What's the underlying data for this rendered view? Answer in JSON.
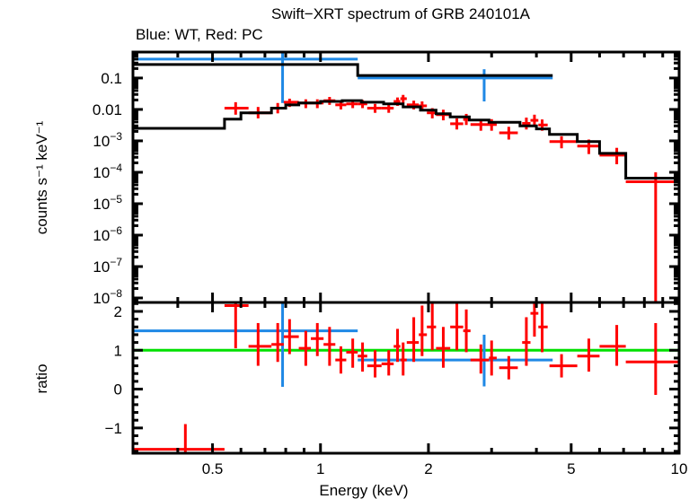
{
  "chart_data": [
    {
      "type": "scatter",
      "panel": "spectrum",
      "title": "Swift−XRT spectrum of GRB 240101A",
      "subtitle": "Blue: WT, Red: PC",
      "xlabel": "Energy (keV)",
      "ylabel": "counts s⁻¹ keV⁻¹",
      "xscale": "log",
      "yscale": "log",
      "xlim": [
        0.3,
        10
      ],
      "ylim": [
        7.2e-09,
        0.67
      ],
      "xticks": [
        {
          "value": 0.5,
          "label": "0.5"
        },
        {
          "value": 1,
          "label": "1"
        },
        {
          "value": 2,
          "label": "2"
        },
        {
          "value": 5,
          "label": "5"
        },
        {
          "value": 10,
          "label": "10"
        }
      ],
      "yticks": [
        {
          "value": 0.1,
          "label": "0.1",
          "base": "0.1",
          "exp": ""
        },
        {
          "value": 0.01,
          "label": "0.01",
          "base": "0.01",
          "exp": ""
        },
        {
          "value": 0.001,
          "label": "10^-3",
          "base": "10",
          "exp": "−3"
        },
        {
          "value": 0.0001,
          "label": "10^-4",
          "base": "10",
          "exp": "−4"
        },
        {
          "value": 1e-05,
          "label": "10^-5",
          "base": "10",
          "exp": "−5"
        },
        {
          "value": 1e-06,
          "label": "10^-6",
          "base": "10",
          "exp": "−6"
        },
        {
          "value": 1e-07,
          "label": "10^-7",
          "base": "10",
          "exp": "−7"
        },
        {
          "value": 1e-08,
          "label": "10^-8",
          "base": "10",
          "exp": "−8"
        }
      ],
      "series": [
        {
          "name": "WT",
          "color": "#1e88e5",
          "kind": "errorbars",
          "points": [
            {
              "x": 0.784,
              "xlo": 0.3,
              "xhi": 1.27,
              "y": 0.4,
              "ylo": 0.016,
              "yhi": 0.67
            },
            {
              "x": 2.86,
              "xlo": 1.27,
              "xhi": 4.44,
              "y": 0.1,
              "ylo": 0.018,
              "yhi": 0.19
            }
          ]
        },
        {
          "name": "WT model",
          "color": "#000000",
          "kind": "step",
          "steps": [
            {
              "xlo": 0.3,
              "xhi": 1.27,
              "y": 0.27
            },
            {
              "xlo": 1.27,
              "xhi": 4.44,
              "y": 0.12
            }
          ]
        },
        {
          "name": "PC",
          "color": "#ff0000",
          "kind": "errorbars",
          "points": [
            {
              "x": 0.58,
              "xlo": 0.54,
              "xhi": 0.63,
              "y": 0.011,
              "ylo": 0.0068,
              "yhi": 0.017
            },
            {
              "x": 0.67,
              "xlo": 0.63,
              "xhi": 0.73,
              "y": 0.0078,
              "ylo": 0.0052,
              "yhi": 0.012
            },
            {
              "x": 0.76,
              "xlo": 0.73,
              "xhi": 0.79,
              "y": 0.011,
              "ylo": 0.0075,
              "yhi": 0.016
            },
            {
              "x": 0.82,
              "xlo": 0.79,
              "xhi": 0.87,
              "y": 0.017,
              "ylo": 0.012,
              "yhi": 0.022
            },
            {
              "x": 0.91,
              "xlo": 0.87,
              "xhi": 0.94,
              "y": 0.016,
              "ylo": 0.011,
              "yhi": 0.021
            },
            {
              "x": 0.98,
              "xlo": 0.94,
              "xhi": 1.02,
              "y": 0.016,
              "ylo": 0.011,
              "yhi": 0.021
            },
            {
              "x": 1.06,
              "xlo": 1.02,
              "xhi": 1.1,
              "y": 0.019,
              "ylo": 0.014,
              "yhi": 0.025
            },
            {
              "x": 1.14,
              "xlo": 1.1,
              "xhi": 1.18,
              "y": 0.014,
              "ylo": 0.01,
              "yhi": 0.019
            },
            {
              "x": 1.23,
              "xlo": 1.18,
              "xhi": 1.27,
              "y": 0.015,
              "ylo": 0.011,
              "yhi": 0.02
            },
            {
              "x": 1.31,
              "xlo": 1.27,
              "xhi": 1.35,
              "y": 0.015,
              "ylo": 0.011,
              "yhi": 0.02
            },
            {
              "x": 1.42,
              "xlo": 1.35,
              "xhi": 1.48,
              "y": 0.011,
              "ylo": 0.0078,
              "yhi": 0.015
            },
            {
              "x": 1.55,
              "xlo": 1.48,
              "xhi": 1.6,
              "y": 0.011,
              "ylo": 0.0078,
              "yhi": 0.015
            },
            {
              "x": 1.64,
              "xlo": 1.6,
              "xhi": 1.67,
              "y": 0.018,
              "ylo": 0.013,
              "yhi": 0.024
            },
            {
              "x": 1.7,
              "xlo": 1.67,
              "xhi": 1.74,
              "y": 0.022,
              "ylo": 0.016,
              "yhi": 0.029
            },
            {
              "x": 1.82,
              "xlo": 1.74,
              "xhi": 1.88,
              "y": 0.014,
              "ylo": 0.01,
              "yhi": 0.019
            },
            {
              "x": 1.92,
              "xlo": 1.88,
              "xhi": 1.98,
              "y": 0.013,
              "ylo": 0.0093,
              "yhi": 0.018
            },
            {
              "x": 2.05,
              "xlo": 1.98,
              "xhi": 2.1,
              "y": 0.0078,
              "ylo": 0.0052,
              "yhi": 0.011
            },
            {
              "x": 2.2,
              "xlo": 2.1,
              "xhi": 2.3,
              "y": 0.0068,
              "ylo": 0.0045,
              "yhi": 0.0098
            },
            {
              "x": 2.4,
              "xlo": 2.3,
              "xhi": 2.5,
              "y": 0.0035,
              "ylo": 0.0023,
              "yhi": 0.0052
            },
            {
              "x": 2.55,
              "xlo": 2.5,
              "xhi": 2.62,
              "y": 0.0048,
              "ylo": 0.0032,
              "yhi": 0.0072
            },
            {
              "x": 2.8,
              "xlo": 2.62,
              "xhi": 2.95,
              "y": 0.0033,
              "ylo": 0.0021,
              "yhi": 0.0048
            },
            {
              "x": 3.0,
              "xlo": 2.95,
              "xhi": 3.1,
              "y": 0.0033,
              "ylo": 0.0021,
              "yhi": 0.0049
            },
            {
              "x": 3.35,
              "xlo": 3.15,
              "xhi": 3.55,
              "y": 0.0018,
              "ylo": 0.0011,
              "yhi": 0.0028
            },
            {
              "x": 3.75,
              "xlo": 3.65,
              "xhi": 3.85,
              "y": 0.0036,
              "ylo": 0.0023,
              "yhi": 0.0055
            },
            {
              "x": 3.95,
              "xlo": 3.85,
              "xhi": 4.05,
              "y": 0.0045,
              "ylo": 0.0029,
              "yhi": 0.0068
            },
            {
              "x": 4.15,
              "xlo": 4.05,
              "xhi": 4.3,
              "y": 0.0032,
              "ylo": 0.0021,
              "yhi": 0.0048
            },
            {
              "x": 4.7,
              "xlo": 4.35,
              "xhi": 5.2,
              "y": 0.00095,
              "ylo": 0.00058,
              "yhi": 0.0014
            },
            {
              "x": 5.6,
              "xlo": 5.2,
              "xhi": 6.0,
              "y": 0.00068,
              "ylo": 0.00038,
              "yhi": 0.0011
            },
            {
              "x": 6.7,
              "xlo": 6.0,
              "xhi": 7.1,
              "y": 0.00035,
              "ylo": 0.00018,
              "yhi": 0.0006
            },
            {
              "x": 8.6,
              "xlo": 7.1,
              "xhi": 10.0,
              "y": 5e-05,
              "ylo": 7.2e-09,
              "yhi": 0.0001
            }
          ]
        },
        {
          "name": "PC model",
          "color": "#000000",
          "kind": "step",
          "steps": [
            {
              "xlo": 0.3,
              "xhi": 0.54,
              "y": 0.0025
            },
            {
              "xlo": 0.54,
              "xhi": 0.6,
              "y": 0.0049
            },
            {
              "xlo": 0.6,
              "xhi": 0.73,
              "y": 0.0078
            },
            {
              "xlo": 0.73,
              "xhi": 0.8,
              "y": 0.011
            },
            {
              "xlo": 0.8,
              "xhi": 0.87,
              "y": 0.014
            },
            {
              "xlo": 0.87,
              "xhi": 1.0,
              "y": 0.016
            },
            {
              "xlo": 1.0,
              "xhi": 1.15,
              "y": 0.018
            },
            {
              "xlo": 1.15,
              "xhi": 1.3,
              "y": 0.019
            },
            {
              "xlo": 1.3,
              "xhi": 1.5,
              "y": 0.017
            },
            {
              "xlo": 1.5,
              "xhi": 1.7,
              "y": 0.015
            },
            {
              "xlo": 1.7,
              "xhi": 1.9,
              "y": 0.012
            },
            {
              "xlo": 1.9,
              "xhi": 2.1,
              "y": 0.0095
            },
            {
              "xlo": 2.1,
              "xhi": 2.3,
              "y": 0.0073
            },
            {
              "xlo": 2.3,
              "xhi": 2.6,
              "y": 0.0058
            },
            {
              "xlo": 2.6,
              "xhi": 2.95,
              "y": 0.0046
            },
            {
              "xlo": 2.95,
              "xhi": 3.6,
              "y": 0.0039
            },
            {
              "xlo": 3.6,
              "xhi": 4.0,
              "y": 0.003
            },
            {
              "xlo": 4.0,
              "xhi": 4.35,
              "y": 0.0024
            },
            {
              "xlo": 4.35,
              "xhi": 5.2,
              "y": 0.0016
            },
            {
              "xlo": 5.2,
              "xhi": 6.0,
              "y": 0.00095
            },
            {
              "xlo": 6.0,
              "xhi": 7.1,
              "y": 0.0004
            },
            {
              "xlo": 7.1,
              "xhi": 10.0,
              "y": 6.5e-05
            }
          ]
        }
      ]
    },
    {
      "type": "scatter",
      "panel": "ratio",
      "xlabel": "Energy (keV)",
      "ylabel": "ratio",
      "xscale": "log",
      "yscale": "linear",
      "xlim": [
        0.3,
        10
      ],
      "ylim": [
        -1.65,
        2.23
      ],
      "xticks": [
        {
          "value": 0.5,
          "label": "0.5"
        },
        {
          "value": 1,
          "label": "1"
        },
        {
          "value": 2,
          "label": "2"
        },
        {
          "value": 5,
          "label": "5"
        },
        {
          "value": 10,
          "label": "10"
        }
      ],
      "yticks": [
        {
          "value": 2,
          "label": "2"
        },
        {
          "value": 1,
          "label": "1"
        },
        {
          "value": 0,
          "label": "0"
        },
        {
          "value": -1,
          "label": "−1"
        }
      ],
      "reference_line": {
        "y": 1,
        "color": "#00e000"
      },
      "series": [
        {
          "name": "WT",
          "color": "#1e88e5",
          "points": [
            {
              "x": 0.784,
              "xlo": 0.3,
              "xhi": 1.27,
              "y": 1.5,
              "ylo": 0.06,
              "yhi": 2.23
            },
            {
              "x": 2.86,
              "xlo": 1.27,
              "xhi": 4.44,
              "y": 0.75,
              "ylo": 0.07,
              "yhi": 1.4
            }
          ]
        },
        {
          "name": "PC",
          "color": "#ff0000",
          "points": [
            {
              "x": 0.42,
              "xlo": 0.3,
              "xhi": 0.54,
              "y": -1.55,
              "ylo": -1.95,
              "yhi": -0.9
            },
            {
              "x": 0.58,
              "xlo": 0.54,
              "xhi": 0.63,
              "y": 2.15,
              "ylo": 1.05,
              "yhi": 2.23
            },
            {
              "x": 0.67,
              "xlo": 0.63,
              "xhi": 0.73,
              "y": 1.1,
              "ylo": 0.6,
              "yhi": 1.7
            },
            {
              "x": 0.76,
              "xlo": 0.73,
              "xhi": 0.79,
              "y": 1.15,
              "ylo": 0.7,
              "yhi": 1.7
            },
            {
              "x": 0.82,
              "xlo": 0.79,
              "xhi": 0.87,
              "y": 1.35,
              "ylo": 0.9,
              "yhi": 1.8
            },
            {
              "x": 0.91,
              "xlo": 0.87,
              "xhi": 0.94,
              "y": 1.05,
              "ylo": 0.6,
              "yhi": 1.5
            },
            {
              "x": 0.98,
              "xlo": 0.94,
              "xhi": 1.02,
              "y": 1.3,
              "ylo": 0.85,
              "yhi": 1.7
            },
            {
              "x": 1.06,
              "xlo": 1.02,
              "xhi": 1.1,
              "y": 1.15,
              "ylo": 0.6,
              "yhi": 1.6
            },
            {
              "x": 1.14,
              "xlo": 1.1,
              "xhi": 1.18,
              "y": 0.75,
              "ylo": 0.4,
              "yhi": 1.1
            },
            {
              "x": 1.23,
              "xlo": 1.18,
              "xhi": 1.27,
              "y": 0.95,
              "ylo": 0.55,
              "yhi": 1.3
            },
            {
              "x": 1.31,
              "xlo": 1.27,
              "xhi": 1.35,
              "y": 0.85,
              "ylo": 0.45,
              "yhi": 1.2
            },
            {
              "x": 1.42,
              "xlo": 1.35,
              "xhi": 1.48,
              "y": 0.6,
              "ylo": 0.3,
              "yhi": 1.0
            },
            {
              "x": 1.55,
              "xlo": 1.48,
              "xhi": 1.6,
              "y": 0.65,
              "ylo": 0.35,
              "yhi": 1.0
            },
            {
              "x": 1.64,
              "xlo": 1.6,
              "xhi": 1.67,
              "y": 1.1,
              "ylo": 0.7,
              "yhi": 1.55
            },
            {
              "x": 1.7,
              "xlo": 1.67,
              "xhi": 1.74,
              "y": 0.75,
              "ylo": 0.35,
              "yhi": 1.2
            },
            {
              "x": 1.82,
              "xlo": 1.74,
              "xhi": 1.88,
              "y": 1.2,
              "ylo": 0.7,
              "yhi": 1.85
            },
            {
              "x": 1.92,
              "xlo": 1.88,
              "xhi": 1.98,
              "y": 1.4,
              "ylo": 0.85,
              "yhi": 2.15
            },
            {
              "x": 2.05,
              "xlo": 1.98,
              "xhi": 2.1,
              "y": 1.6,
              "ylo": 1.0,
              "yhi": 2.3
            },
            {
              "x": 2.2,
              "xlo": 2.1,
              "xhi": 2.3,
              "y": 1.05,
              "ylo": 0.55,
              "yhi": 1.6
            },
            {
              "x": 2.4,
              "xlo": 2.3,
              "xhi": 2.5,
              "y": 1.6,
              "ylo": 1.0,
              "yhi": 2.2
            },
            {
              "x": 2.55,
              "xlo": 2.5,
              "xhi": 2.62,
              "y": 1.5,
              "ylo": 0.95,
              "yhi": 2.05
            },
            {
              "x": 2.8,
              "xlo": 2.62,
              "xhi": 2.95,
              "y": 0.75,
              "ylo": 0.4,
              "yhi": 1.15
            },
            {
              "x": 3.0,
              "xlo": 2.95,
              "xhi": 3.1,
              "y": 0.8,
              "ylo": 0.35,
              "yhi": 1.25
            },
            {
              "x": 3.35,
              "xlo": 3.15,
              "xhi": 3.55,
              "y": 0.55,
              "ylo": 0.25,
              "yhi": 0.85
            },
            {
              "x": 3.75,
              "xlo": 3.65,
              "xhi": 3.85,
              "y": 1.2,
              "ylo": 0.6,
              "yhi": 1.85
            },
            {
              "x": 3.95,
              "xlo": 3.85,
              "xhi": 4.05,
              "y": 1.95,
              "ylo": 1.35,
              "yhi": 2.23
            },
            {
              "x": 4.15,
              "xlo": 4.05,
              "xhi": 4.3,
              "y": 1.6,
              "ylo": 0.95,
              "yhi": 2.23
            },
            {
              "x": 4.7,
              "xlo": 4.35,
              "xhi": 5.2,
              "y": 0.6,
              "ylo": 0.3,
              "yhi": 0.9
            },
            {
              "x": 5.6,
              "xlo": 5.2,
              "xhi": 6.0,
              "y": 0.85,
              "ylo": 0.45,
              "yhi": 1.3
            },
            {
              "x": 6.7,
              "xlo": 6.0,
              "xhi": 7.1,
              "y": 1.1,
              "ylo": 0.6,
              "yhi": 1.65
            },
            {
              "x": 8.6,
              "xlo": 7.1,
              "xhi": 10.0,
              "y": 0.7,
              "ylo": -0.15,
              "yhi": 1.7
            }
          ]
        }
      ]
    }
  ]
}
